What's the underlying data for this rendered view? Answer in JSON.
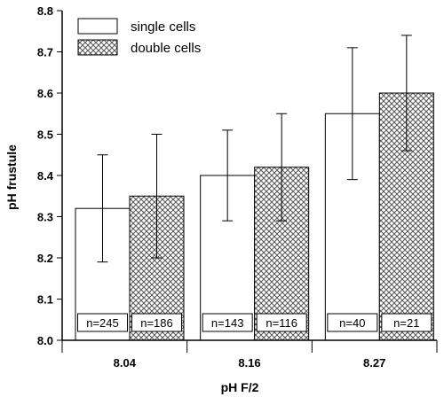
{
  "chart_data": {
    "type": "bar",
    "xlabel": "pH F/2",
    "ylabel": "pH frustule",
    "ylim": [
      8.0,
      8.8
    ],
    "yticks": [
      "8.0",
      "8.1",
      "8.2",
      "8.3",
      "8.4",
      "8.5",
      "8.6",
      "8.7",
      "8.8"
    ],
    "categories": [
      "8.04",
      "8.16",
      "8.27"
    ],
    "grid": false,
    "legend_position": "top-left",
    "series": [
      {
        "name": "single cells",
        "fill": "white",
        "values": [
          8.32,
          8.4,
          8.55
        ],
        "err_low": [
          8.19,
          8.29,
          8.39
        ],
        "err_high": [
          8.45,
          8.51,
          8.71
        ],
        "n": [
          "n=245",
          "n=143",
          "n=40"
        ]
      },
      {
        "name": "double cells",
        "fill": "crosshatch",
        "values": [
          8.35,
          8.42,
          8.6
        ],
        "err_low": [
          8.2,
          8.29,
          8.46
        ],
        "err_high": [
          8.5,
          8.55,
          8.74
        ],
        "n": [
          "n=186",
          "n=116",
          "n=21"
        ]
      }
    ],
    "colors": {
      "axis": "#000000",
      "bar_edge": "#000000",
      "hatch": "#555555",
      "background": "#ffffff"
    }
  }
}
